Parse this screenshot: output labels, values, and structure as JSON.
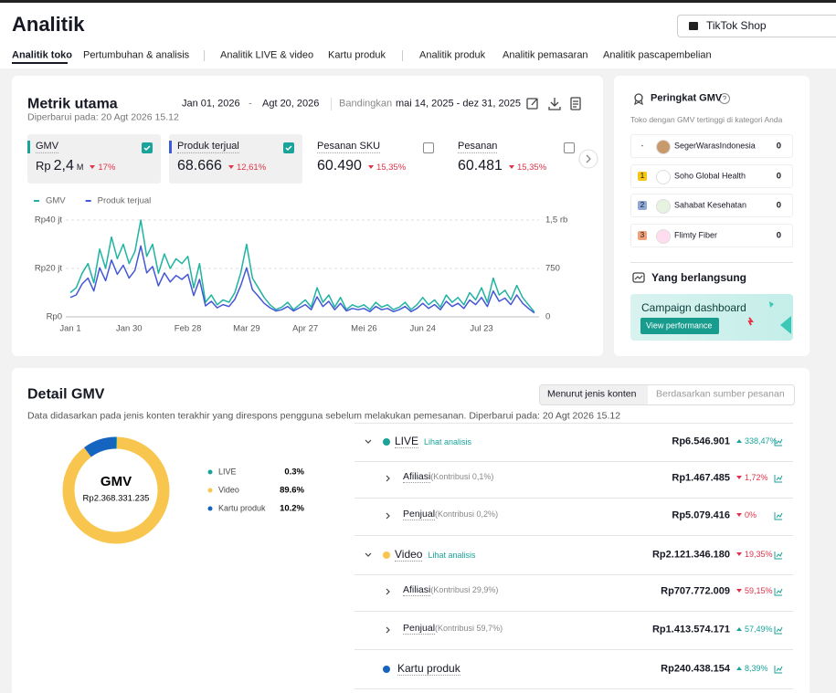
{
  "header": {
    "title": "Analitik",
    "shop": "TikTok Shop"
  },
  "tabs": [
    "Analitik toko",
    "Pertumbuhan & analisis",
    "Analitik LIVE & video",
    "Kartu produk",
    "Analitik produk",
    "Analitik pemasaran",
    "Analitik pascapembelian"
  ],
  "metrics": {
    "title": "Metrik utama",
    "updated": "Diperbarui pada: 20 Agt 2026 15.12",
    "date_start": "Jan 01, 2026",
    "date_separator": "-",
    "date_end": "Agt 20, 2026",
    "compare_label": "Bandingkan",
    "compare_range": "mai 14, 2025 - dez 31, 2025",
    "cards": [
      {
        "label": "GMV",
        "prefix": "Rp",
        "value": "2,4",
        "unit": "M",
        "change": "17%",
        "trend": "down",
        "checked": true,
        "color": "#1aa39a"
      },
      {
        "label": "Produk terjual",
        "value": "68.666",
        "change": "12,61%",
        "trend": "down",
        "checked": true,
        "color": "#3b5bdb"
      },
      {
        "label": "Pesanan SKU",
        "value": "60.490",
        "change": "15,35%",
        "trend": "down",
        "checked": false
      },
      {
        "label": "Pesanan",
        "value": "60.481",
        "change": "15,35%",
        "trend": "down",
        "checked": false
      }
    ]
  },
  "chart_data": [
    {
      "type": "line",
      "legend": "top-left",
      "grid": true,
      "categories": [
        "Jan 1",
        null,
        null,
        null,
        null,
        null,
        null,
        null,
        null,
        null,
        "Jan 30",
        null,
        null,
        null,
        null,
        null,
        null,
        null,
        null,
        null,
        "Feb 28",
        null,
        null,
        null,
        null,
        null,
        null,
        null,
        null,
        null,
        "Mar 29",
        null,
        null,
        null,
        null,
        null,
        null,
        null,
        null,
        null,
        "Apr 27",
        null,
        null,
        null,
        null,
        null,
        null,
        null,
        null,
        null,
        "Mei 26",
        null,
        null,
        null,
        null,
        null,
        null,
        null,
        null,
        null,
        "Jun 24",
        null,
        null,
        null,
        null,
        null,
        null,
        null,
        null,
        null,
        "Jul 23",
        null,
        null,
        null,
        null,
        null,
        null,
        null,
        null,
        null
      ],
      "series": [
        {
          "name": "GMV",
          "color": "#1fb3a1",
          "values": [
            10,
            12,
            18,
            22,
            14,
            28,
            20,
            33,
            24,
            30,
            22,
            27,
            40,
            25,
            30,
            18,
            26,
            20,
            24,
            22,
            25,
            12,
            22,
            6,
            9,
            5,
            7,
            6,
            10,
            18,
            30,
            16,
            12,
            8,
            5,
            3,
            4,
            6,
            3,
            5,
            7,
            4,
            12,
            6,
            9,
            4,
            8,
            3,
            5,
            4,
            5,
            3,
            6,
            4,
            5,
            3,
            4,
            6,
            3,
            5,
            8,
            5,
            7,
            4,
            9,
            6,
            8,
            5,
            10,
            7,
            12,
            6,
            16,
            9,
            11,
            7,
            13,
            8,
            5,
            2
          ]
        },
        {
          "name": "Produk terjual",
          "color": "#4457d6",
          "axis": "y2",
          "values": [
            300,
            340,
            510,
            600,
            400,
            760,
            560,
            880,
            660,
            800,
            600,
            720,
            1100,
            680,
            780,
            480,
            680,
            540,
            640,
            580,
            660,
            330,
            580,
            170,
            240,
            140,
            190,
            160,
            270,
            480,
            760,
            420,
            320,
            210,
            140,
            90,
            110,
            160,
            90,
            140,
            190,
            110,
            310,
            160,
            240,
            110,
            210,
            90,
            130,
            110,
            130,
            80,
            160,
            110,
            130,
            80,
            110,
            160,
            80,
            130,
            210,
            130,
            190,
            110,
            240,
            160,
            210,
            130,
            260,
            190,
            300,
            160,
            400,
            240,
            290,
            190,
            340,
            210,
            130,
            60
          ]
        }
      ],
      "ylim": [
        0,
        40
      ],
      "yticks": [
        {
          "value": 0,
          "label": "Rp0"
        },
        {
          "value": 20,
          "label": "Rp20 jt"
        },
        {
          "value": 40,
          "label": "Rp40 jt"
        }
      ],
      "y2lim": [
        0,
        1500
      ],
      "y2ticks": [
        0,
        750,
        {
          "value": 1500,
          "label": "1,5 rb"
        }
      ]
    },
    {
      "type": "pie",
      "donut": true,
      "center_title": "GMV",
      "center_value": "Rp2.368.331.235",
      "categories": [
        "LIVE",
        "Video",
        "Kartu produk"
      ],
      "values": [
        0.3,
        89.6,
        10.2
      ],
      "value_labels": [
        "0.3%",
        "89.6%",
        "10.2%"
      ],
      "colors": [
        "#1aa39a",
        "#f8c64e",
        "#1565c0"
      ]
    }
  ],
  "ranking": {
    "title": "Peringkat GMV",
    "subtitle": "Toko dengan GMV tertinggi di kategori Anda",
    "rows": [
      {
        "rank": "-",
        "name": "SegerWarasIndonesia",
        "value": "0"
      },
      {
        "rank": "1",
        "name": "Soho Global Health",
        "value": "0"
      },
      {
        "rank": "2",
        "name": "Sahabat Kesehatan",
        "value": "0"
      },
      {
        "rank": "3",
        "name": "Flimty Fiber",
        "value": "0"
      }
    ]
  },
  "ongoing": {
    "title": "Yang berlangsung",
    "banner": "Campaign dashboard",
    "button": "View performance"
  },
  "detail": {
    "title": "Detail GMV",
    "toggle": [
      "Menurut jenis konten",
      "Berdasarkan sumber pesanan"
    ],
    "description": "Data didasarkan pada jenis konten terakhir yang direspons pengguna sebelum melakukan pemesanan.  Diperbarui pada: 20 Agt 2026 15.12",
    "rows": [
      {
        "level": 1,
        "label": "LIVE",
        "link": "Lihat analisis",
        "value": "Rp6.546.901",
        "change": "338,47%",
        "trend": "up",
        "color": "#1aa39a",
        "expandable": true
      },
      {
        "level": 2,
        "label": "Afiliasi",
        "note": "(Kontribusi 0,1%)",
        "value": "Rp1.467.485",
        "change": "1,72%",
        "trend": "down",
        "expandable": true
      },
      {
        "level": 2,
        "label": "Penjual",
        "note": "(Kontribusi 0,2%)",
        "value": "Rp5.079.416",
        "change": "0%",
        "trend": "down",
        "expandable": true
      },
      {
        "level": 1,
        "label": "Video",
        "link": "Lihat analisis",
        "value": "Rp2.121.346.180",
        "change": "19,35%",
        "trend": "down",
        "color": "#f8c64e",
        "expandable": true
      },
      {
        "level": 2,
        "label": "Afiliasi",
        "note": "(Kontribusi 29,9%)",
        "value": "Rp707.772.009",
        "change": "59,15%",
        "trend": "down",
        "expandable": true
      },
      {
        "level": 2,
        "label": "Penjual",
        "note": "(Kontribusi 59,7%)",
        "value": "Rp1.413.574.171",
        "change": "57,49%",
        "trend": "up",
        "expandable": true
      },
      {
        "level": 1,
        "label": "Kartu produk",
        "value": "Rp240.438.154",
        "change": "8,39%",
        "trend": "up",
        "color": "#1565c0",
        "expandable": false
      }
    ]
  }
}
